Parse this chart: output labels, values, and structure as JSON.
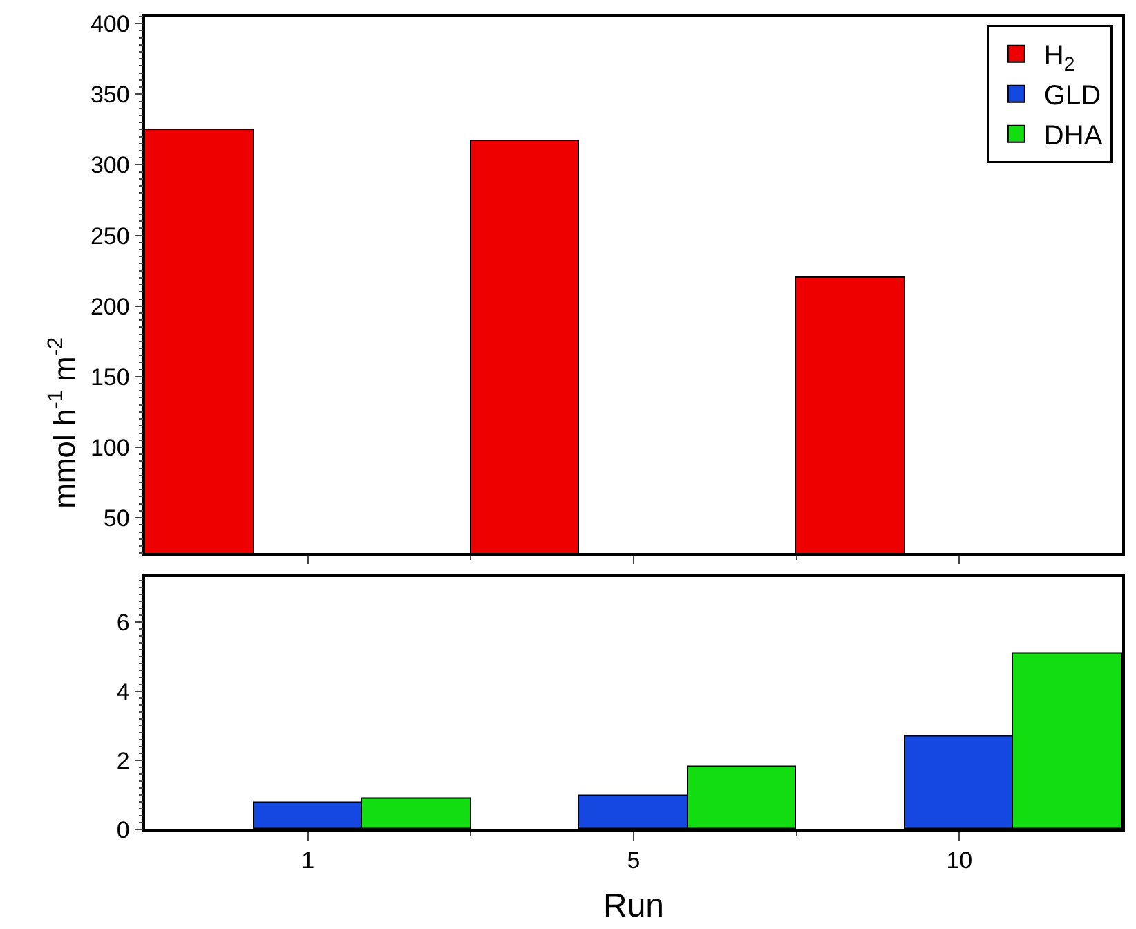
{
  "chart_data": [
    {
      "type": "bar",
      "ylabel": "mmol h$^{-1}$ m$^{-2}$",
      "categories": [
        "1",
        "5",
        "10"
      ],
      "series": [
        {
          "name": "H$_{2}$",
          "color": "#ee0000",
          "values": [
            325,
            317,
            220
          ]
        },
        {
          "name": "GLD",
          "color": "#1448e0",
          "values": [
            null,
            null,
            null
          ]
        },
        {
          "name": "DHA",
          "color": "#11dd11",
          "values": [
            null,
            null,
            null
          ]
        }
      ],
      "ylim": [
        25,
        405
      ],
      "yticks": [
        50,
        100,
        150,
        200,
        250,
        300,
        350,
        400
      ],
      "legend": "top right",
      "tick_labels": "y"
    },
    {
      "type": "bar",
      "xlabel": "Run",
      "categories": [
        "1",
        "5",
        "10"
      ],
      "series": [
        {
          "color": "#ee0000",
          "values": [
            null,
            null,
            null
          ]
        },
        {
          "color": "#1448e0",
          "values": [
            0.79,
            0.96,
            2.7
          ]
        },
        {
          "color": "#11dd11",
          "values": [
            0.88,
            1.83,
            5.08
          ]
        }
      ],
      "ylim": [
        0,
        7.3
      ],
      "yticks": [
        0,
        2,
        4,
        6
      ]
    }
  ]
}
